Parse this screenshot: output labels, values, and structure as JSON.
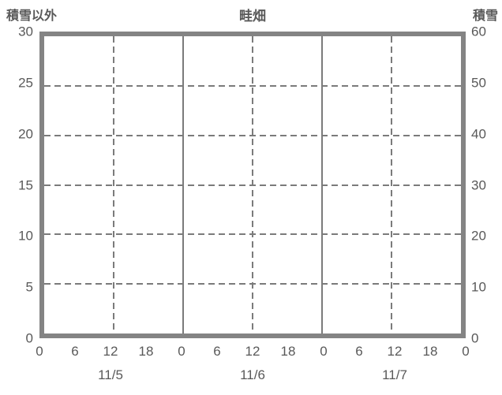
{
  "chart_data": {
    "type": "line",
    "title": "畦畑",
    "subtitle": "",
    "left_axis": {
      "title": "積雪以外",
      "ticks": [
        0,
        5,
        10,
        15,
        20,
        25,
        30
      ],
      "range": [
        0,
        30
      ]
    },
    "right_axis": {
      "title": "積雪",
      "ticks": [
        0,
        10,
        20,
        30,
        40,
        50,
        60
      ],
      "range": [
        0,
        60
      ]
    },
    "x_axis": {
      "tick_labels": [
        "0",
        "6",
        "12",
        "18",
        "0",
        "6",
        "12",
        "18",
        "0",
        "6",
        "12",
        "18",
        "0"
      ],
      "range_hours": [
        0,
        72
      ],
      "date_labels": [
        "11/5",
        "11/6",
        "11/7"
      ]
    },
    "gridlines": {
      "horizontal_values": [
        5,
        10,
        15,
        20,
        25
      ],
      "vertical_dashed_hours": [
        12,
        36,
        60
      ],
      "vertical_solid_hours": [
        24,
        48
      ],
      "grid_on": true
    },
    "legend": {
      "visible": false,
      "entries": []
    },
    "series": [],
    "colors": {
      "frame": "#848484",
      "grid": "#7b7b7b",
      "text": "#595959",
      "background": "#ffffff"
    }
  }
}
